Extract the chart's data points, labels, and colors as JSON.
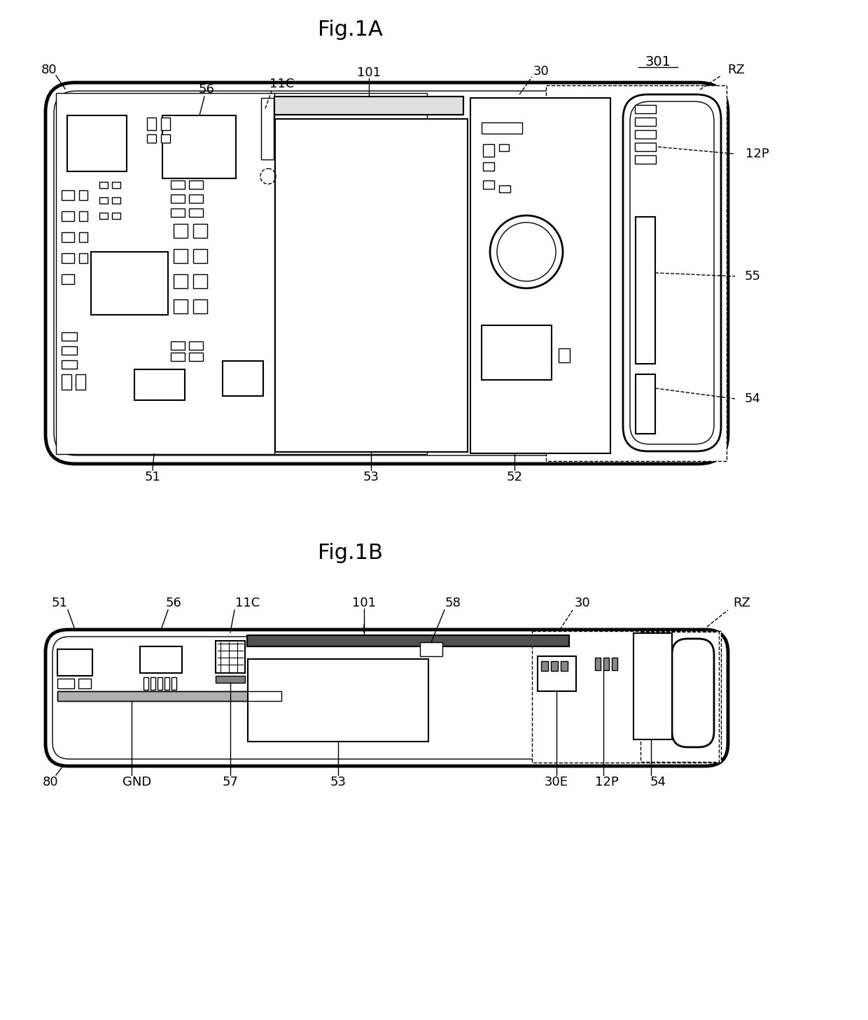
{
  "fig_title_A": "Fig.1A",
  "fig_title_B": "Fig.1B",
  "label_301": "301",
  "bg_color": "#ffffff",
  "line_color": "#000000",
  "fig_width": 12.4,
  "fig_height": 14.58
}
